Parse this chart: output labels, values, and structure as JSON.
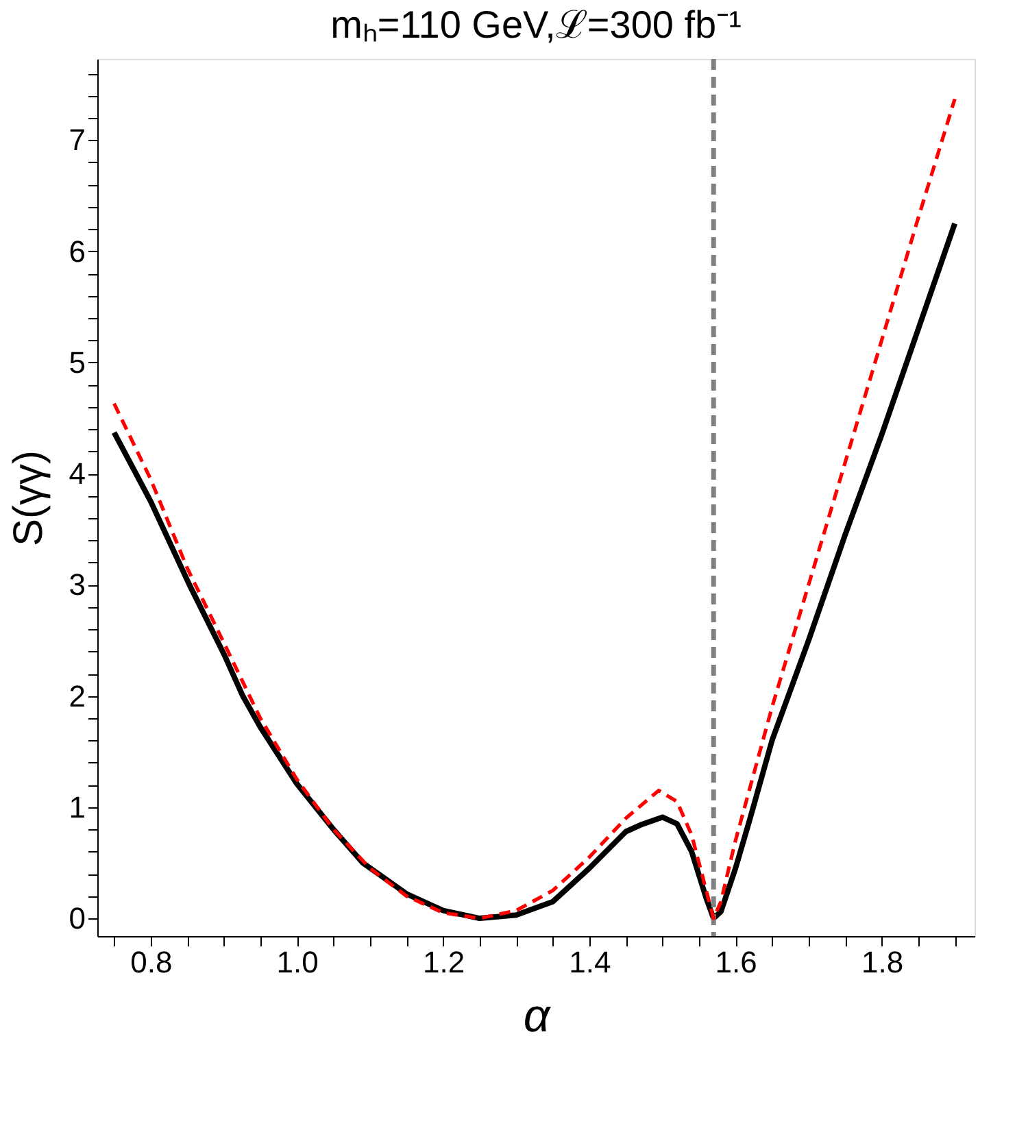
{
  "chart_data": {
    "type": "line",
    "title": "mₕ=110 GeV,ℒ=300 fb⁻¹",
    "xlabel": "α",
    "ylabel": "S(γγ)",
    "xlim": [
      0.727,
      1.927
    ],
    "ylim": [
      -0.16,
      7.73
    ],
    "xticks": [
      {
        "value": 0.75,
        "label": null
      },
      {
        "value": 0.8,
        "label": "0.8"
      },
      {
        "value": 0.85,
        "label": null
      },
      {
        "value": 0.9,
        "label": null
      },
      {
        "value": 0.95,
        "label": null
      },
      {
        "value": 1.0,
        "label": "1.0"
      },
      {
        "value": 1.05,
        "label": null
      },
      {
        "value": 1.1,
        "label": null
      },
      {
        "value": 1.15,
        "label": null
      },
      {
        "value": 1.2,
        "label": "1.2"
      },
      {
        "value": 1.25,
        "label": null
      },
      {
        "value": 1.3,
        "label": null
      },
      {
        "value": 1.35,
        "label": null
      },
      {
        "value": 1.4,
        "label": "1.4"
      },
      {
        "value": 1.45,
        "label": null
      },
      {
        "value": 1.5,
        "label": null
      },
      {
        "value": 1.55,
        "label": null
      },
      {
        "value": 1.6,
        "label": "1.6"
      },
      {
        "value": 1.65,
        "label": null
      },
      {
        "value": 1.7,
        "label": null
      },
      {
        "value": 1.75,
        "label": null
      },
      {
        "value": 1.8,
        "label": "1.8"
      },
      {
        "value": 1.85,
        "label": null
      },
      {
        "value": 1.9,
        "label": null
      }
    ],
    "yticks": [
      0,
      {
        "value": 0.2,
        "label": null
      },
      {
        "value": 0.4,
        "label": null
      },
      {
        "value": 0.6,
        "label": null
      },
      {
        "value": 0.8,
        "label": null
      },
      1,
      {
        "value": 1.2,
        "label": null
      },
      {
        "value": 1.4,
        "label": null
      },
      {
        "value": 1.6,
        "label": null
      },
      {
        "value": 1.8,
        "label": null
      },
      2,
      {
        "value": 2.2,
        "label": null
      },
      {
        "value": 2.4,
        "label": null
      },
      {
        "value": 2.6,
        "label": null
      },
      {
        "value": 2.8,
        "label": null
      },
      3,
      {
        "value": 3.2,
        "label": null
      },
      {
        "value": 3.4,
        "label": null
      },
      {
        "value": 3.6,
        "label": null
      },
      {
        "value": 3.8,
        "label": null
      },
      4,
      {
        "value": 4.2,
        "label": null
      },
      {
        "value": 4.4,
        "label": null
      },
      {
        "value": 4.6,
        "label": null
      },
      {
        "value": 4.8,
        "label": null
      },
      5,
      {
        "value": 5.2,
        "label": null
      },
      {
        "value": 5.4,
        "label": null
      },
      {
        "value": 5.6,
        "label": null
      },
      {
        "value": 5.8,
        "label": null
      },
      6,
      {
        "value": 6.2,
        "label": null
      },
      {
        "value": 6.4,
        "label": null
      },
      {
        "value": 6.6,
        "label": null
      },
      {
        "value": 6.8,
        "label": null
      },
      7,
      {
        "value": 7.2,
        "label": null
      },
      {
        "value": 7.4,
        "label": null
      },
      {
        "value": 7.6,
        "label": null
      }
    ],
    "grid": false,
    "marker": "none",
    "ref_lines": [
      {
        "axis": "x",
        "value": 1.57,
        "color": "#808080",
        "line_style": "dashed"
      }
    ],
    "series": [
      {
        "color": "#000000",
        "line_style": "solid",
        "x": [
          0.75,
          0.8,
          0.853,
          0.9,
          0.926,
          0.95,
          1.0,
          1.05,
          1.09,
          1.15,
          1.2,
          1.25,
          1.3,
          1.35,
          1.4,
          1.45,
          1.47,
          1.5,
          1.52,
          1.54,
          1.56,
          1.57,
          1.58,
          1.6,
          1.62,
          1.65,
          1.7,
          1.75,
          1.8,
          1.85,
          1.9
        ],
        "values": [
          4.37,
          3.75,
          3.0,
          2.38,
          2.0,
          1.72,
          1.21,
          0.8,
          0.5,
          0.22,
          0.07,
          0.0,
          0.03,
          0.15,
          0.45,
          0.78,
          0.84,
          0.91,
          0.85,
          0.6,
          0.18,
          0.0,
          0.06,
          0.45,
          0.9,
          1.6,
          2.5,
          3.45,
          4.35,
          5.3,
          6.25
        ]
      },
      {
        "color": "#ff0000",
        "line_style": "dashed",
        "x": [
          0.75,
          0.8,
          0.85,
          0.9,
          0.95,
          1.0,
          1.05,
          1.1,
          1.15,
          1.2,
          1.25,
          1.3,
          1.35,
          1.4,
          1.45,
          1.495,
          1.52,
          1.54,
          1.56,
          1.57,
          1.58,
          1.6,
          1.65,
          1.7,
          1.75,
          1.8,
          1.85,
          1.9
        ],
        "values": [
          4.63,
          3.95,
          3.15,
          2.48,
          1.8,
          1.25,
          0.8,
          0.45,
          0.2,
          0.05,
          0.0,
          0.07,
          0.25,
          0.55,
          0.9,
          1.15,
          1.05,
          0.75,
          0.25,
          0.0,
          0.15,
          0.7,
          1.9,
          3.0,
          4.1,
          5.2,
          6.3,
          7.37
        ]
      }
    ]
  }
}
